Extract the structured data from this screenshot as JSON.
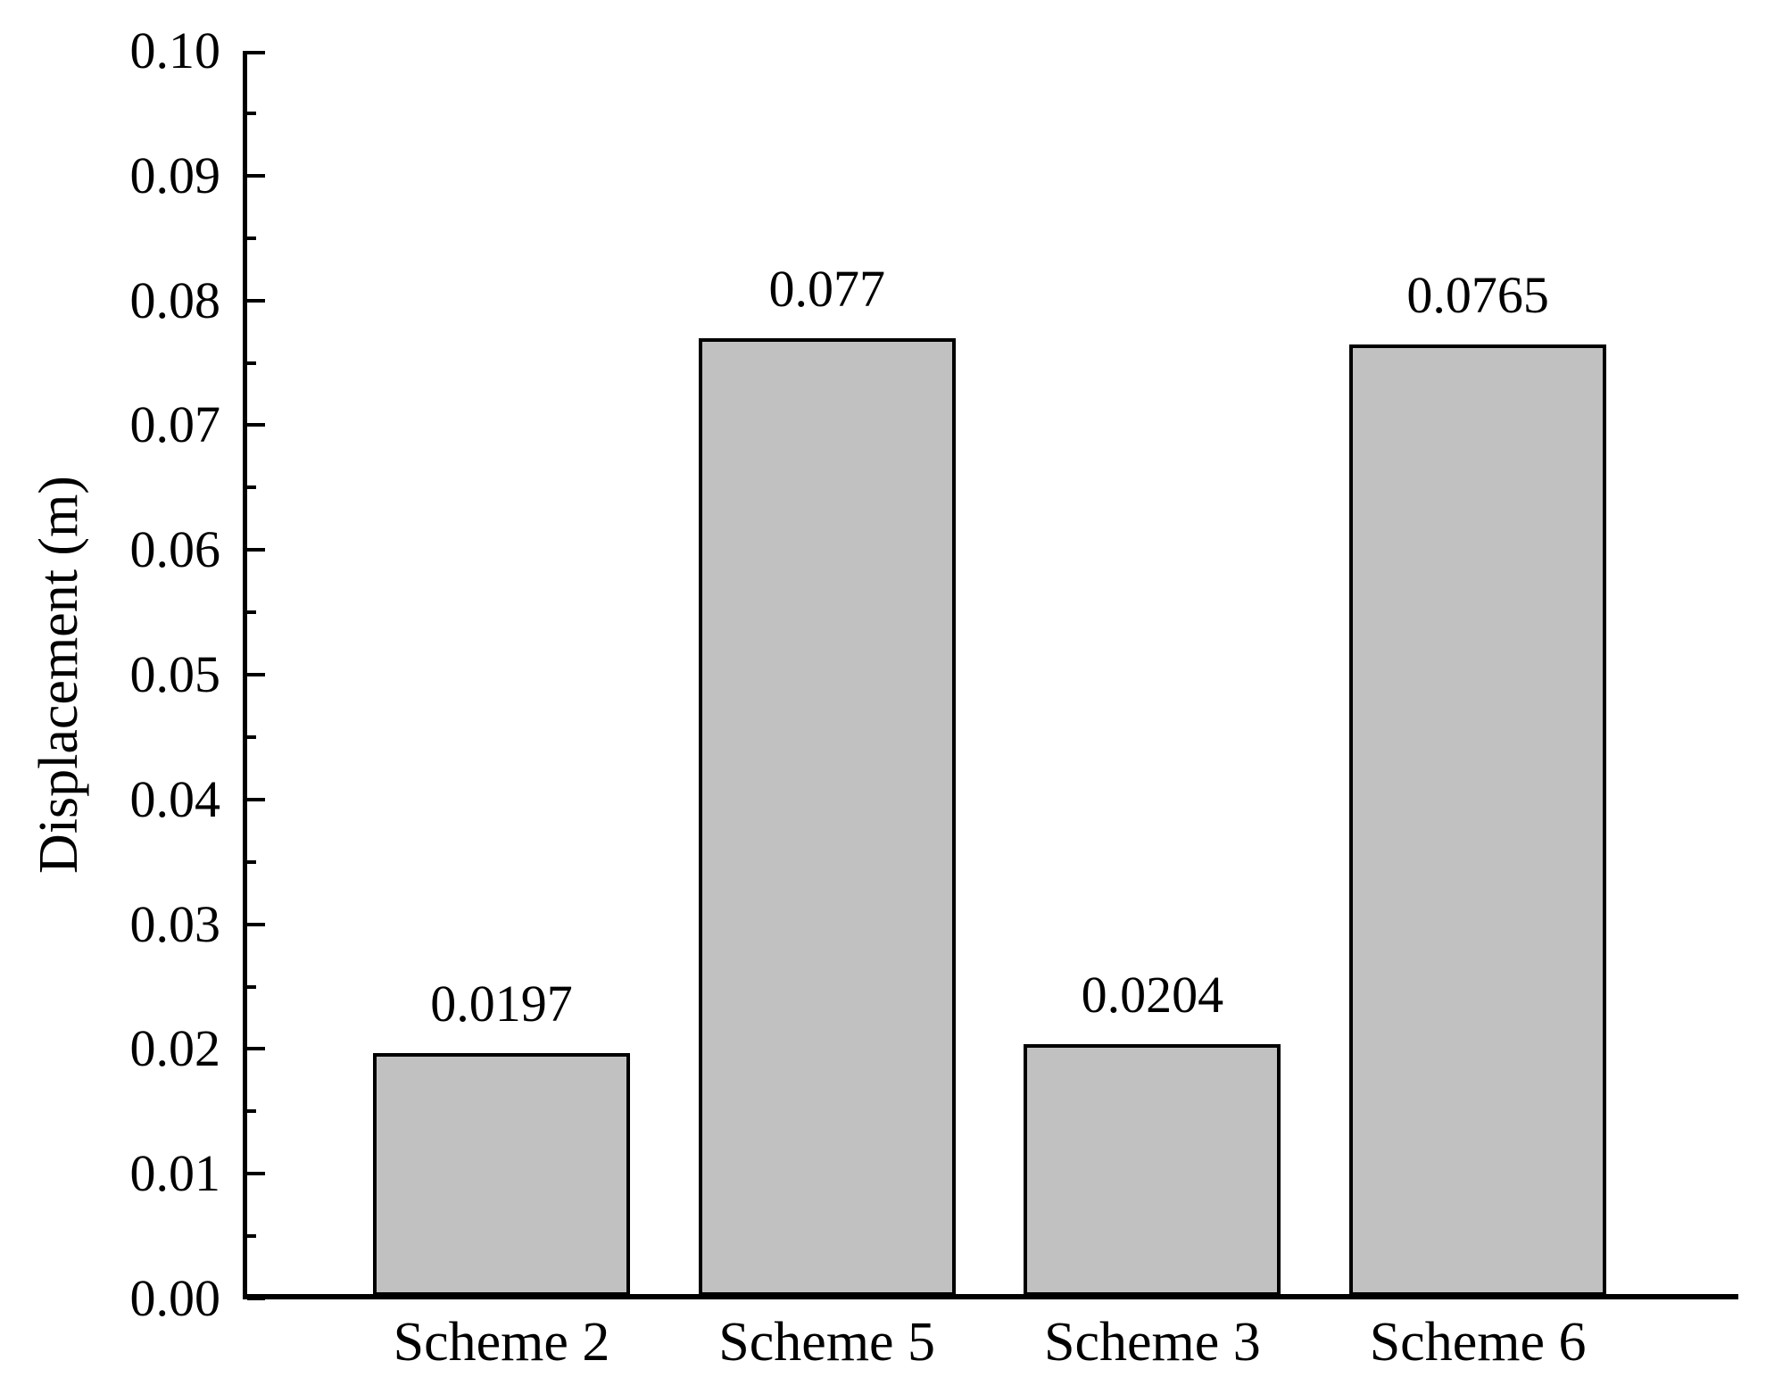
{
  "chart_data": {
    "type": "bar",
    "title": "",
    "xlabel": "",
    "ylabel": "Displacement (m)",
    "categories": [
      "Scheme 2",
      "Scheme 5",
      "Scheme 3",
      "Scheme 6"
    ],
    "values": [
      0.0197,
      0.077,
      0.0204,
      0.0765
    ],
    "value_labels": [
      "0.0197",
      "0.077",
      "0.0204",
      "0.0765"
    ],
    "ylim": [
      0.0,
      0.1
    ],
    "ytick_major_step": 0.01,
    "ytick_minor_step": 0.005,
    "ytick_labels": [
      "0.00",
      "0.01",
      "0.02",
      "0.03",
      "0.04",
      "0.05",
      "0.06",
      "0.07",
      "0.08",
      "0.09",
      "0.10"
    ],
    "grid": false,
    "legend": "none",
    "axes_shown": [
      "left",
      "bottom"
    ],
    "tick_direction": "in",
    "colors": {
      "bar_fill": "#c1c1c1",
      "bar_border": "#000000",
      "axis": "#000000",
      "text": "#000000",
      "background": "#ffffff"
    }
  }
}
